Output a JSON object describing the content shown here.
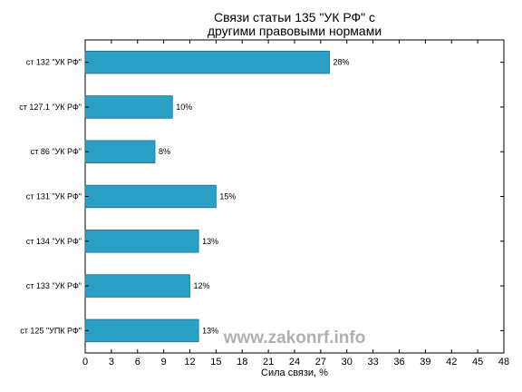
{
  "chart_data": {
    "type": "bar",
    "orientation": "horizontal",
    "title_lines": [
      "Связи статьи 135 \"УК РФ\" с",
      "другими правовыми нормами"
    ],
    "categories": [
      "ст 132 \"УК РФ\"",
      "ст 127.1 \"УК РФ\"",
      "ст 86 \"УК РФ\"",
      "ст 131 \"УК РФ\"",
      "ст 134 \"УК РФ\"",
      "ст 133 \"УК РФ\"",
      "ст 125 \"УПК РФ\""
    ],
    "values": [
      28,
      10,
      8,
      15,
      13,
      12,
      13
    ],
    "value_labels": [
      "28%",
      "10%",
      "8%",
      "15%",
      "13%",
      "12%",
      "13%"
    ],
    "xlabel": "Сила связи, %",
    "xlim": [
      0,
      48
    ],
    "xticks": [
      0,
      3,
      6,
      9,
      12,
      15,
      18,
      21,
      24,
      27,
      30,
      33,
      36,
      39,
      42,
      45,
      48
    ],
    "bar_color": "#2aa0c6",
    "bar_edge_color": "#1e6f88",
    "grid": false
  },
  "watermark": "www.zakonrf.info"
}
